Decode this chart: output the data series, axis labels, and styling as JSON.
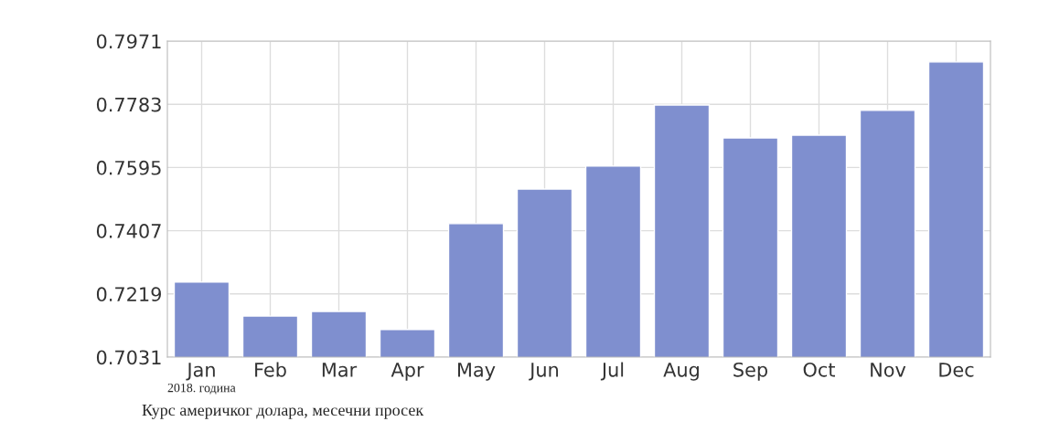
{
  "chart_data": {
    "type": "bar",
    "categories": [
      "Jan",
      "Feb",
      "Mar",
      "Apr",
      "May",
      "Jun",
      "Jul",
      "Aug",
      "Sep",
      "Oct",
      "Nov",
      "Dec"
    ],
    "values": [
      0.7254,
      0.7153,
      0.7167,
      0.7113,
      0.7428,
      0.7531,
      0.7599,
      0.7781,
      0.7683,
      0.7691,
      0.7765,
      0.7909
    ],
    "color": "#7f8fcf",
    "ylim": [
      0.7031,
      0.7971
    ],
    "yticks": [
      0.7031,
      0.7219,
      0.7407,
      0.7595,
      0.7783,
      0.7971
    ],
    "xlabel": "2018. година",
    "annotations": [
      "Курс америчког долара, месечни просек"
    ],
    "grid": true
  }
}
